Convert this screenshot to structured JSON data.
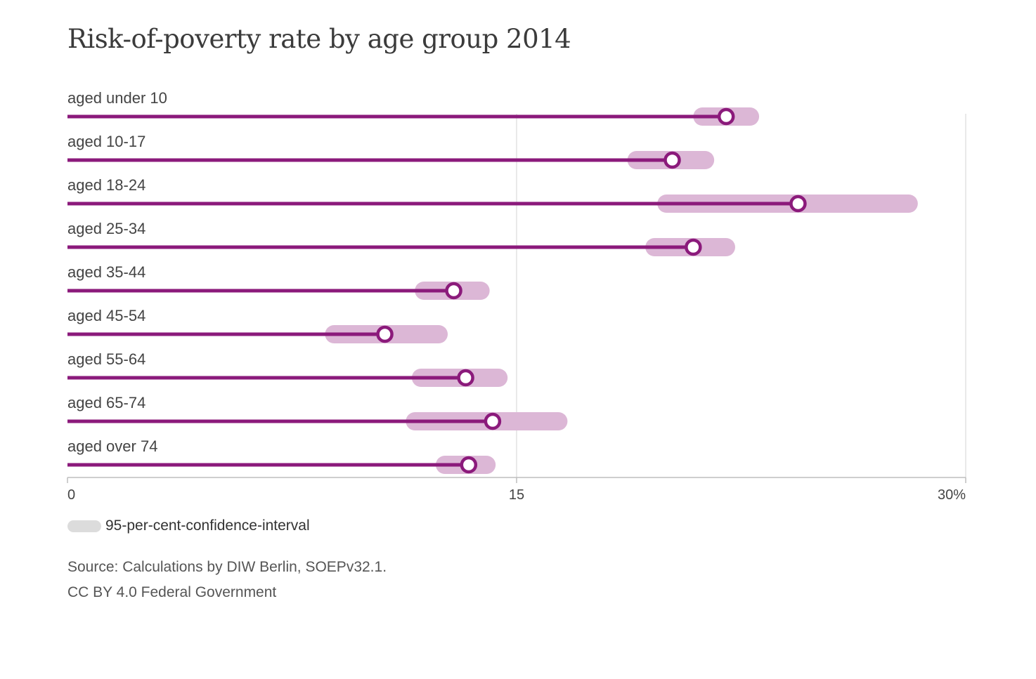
{
  "chart_data": {
    "type": "dot-with-confidence-interval",
    "title": "Risk-of-poverty rate by age group 2014",
    "categories": [
      "aged under 10",
      "aged 10-17",
      "aged 18-24",
      "aged 25-34",
      "aged 35-44",
      "aged 45-54",
      "aged 55-64",
      "aged 65-74",
      "aged over 74"
    ],
    "series": [
      {
        "values": [
          22.0,
          20.2,
          24.4,
          20.9,
          12.9,
          10.6,
          13.3,
          14.2,
          13.4
        ],
        "ci_low": [
          20.9,
          18.7,
          19.7,
          19.3,
          11.6,
          8.6,
          11.5,
          11.3,
          12.3
        ],
        "ci_high": [
          23.1,
          21.6,
          28.4,
          22.3,
          14.1,
          12.7,
          14.7,
          16.7,
          14.3
        ]
      }
    ],
    "xlim": [
      0,
      30
    ],
    "x_ticks": [
      {
        "value": 0,
        "label": "0"
      },
      {
        "value": 15,
        "label": "15"
      },
      {
        "value": 30,
        "label": "30%"
      }
    ],
    "gridlines": [
      15,
      30
    ],
    "legend": {
      "label": "95-per-cent-confidence-interval",
      "placement": "bottom-left"
    },
    "colors": {
      "line": "#8b1a7b",
      "interval": "#dcb7d6",
      "legend_swatch": "#dcdcdc",
      "axis": "#bdbdbd",
      "grid": "#e2e2e2"
    }
  },
  "footer": {
    "source": "Source: Calculations by DIW Berlin, SOEPv32.1.",
    "license": "CC BY 4.0 Federal Government"
  }
}
